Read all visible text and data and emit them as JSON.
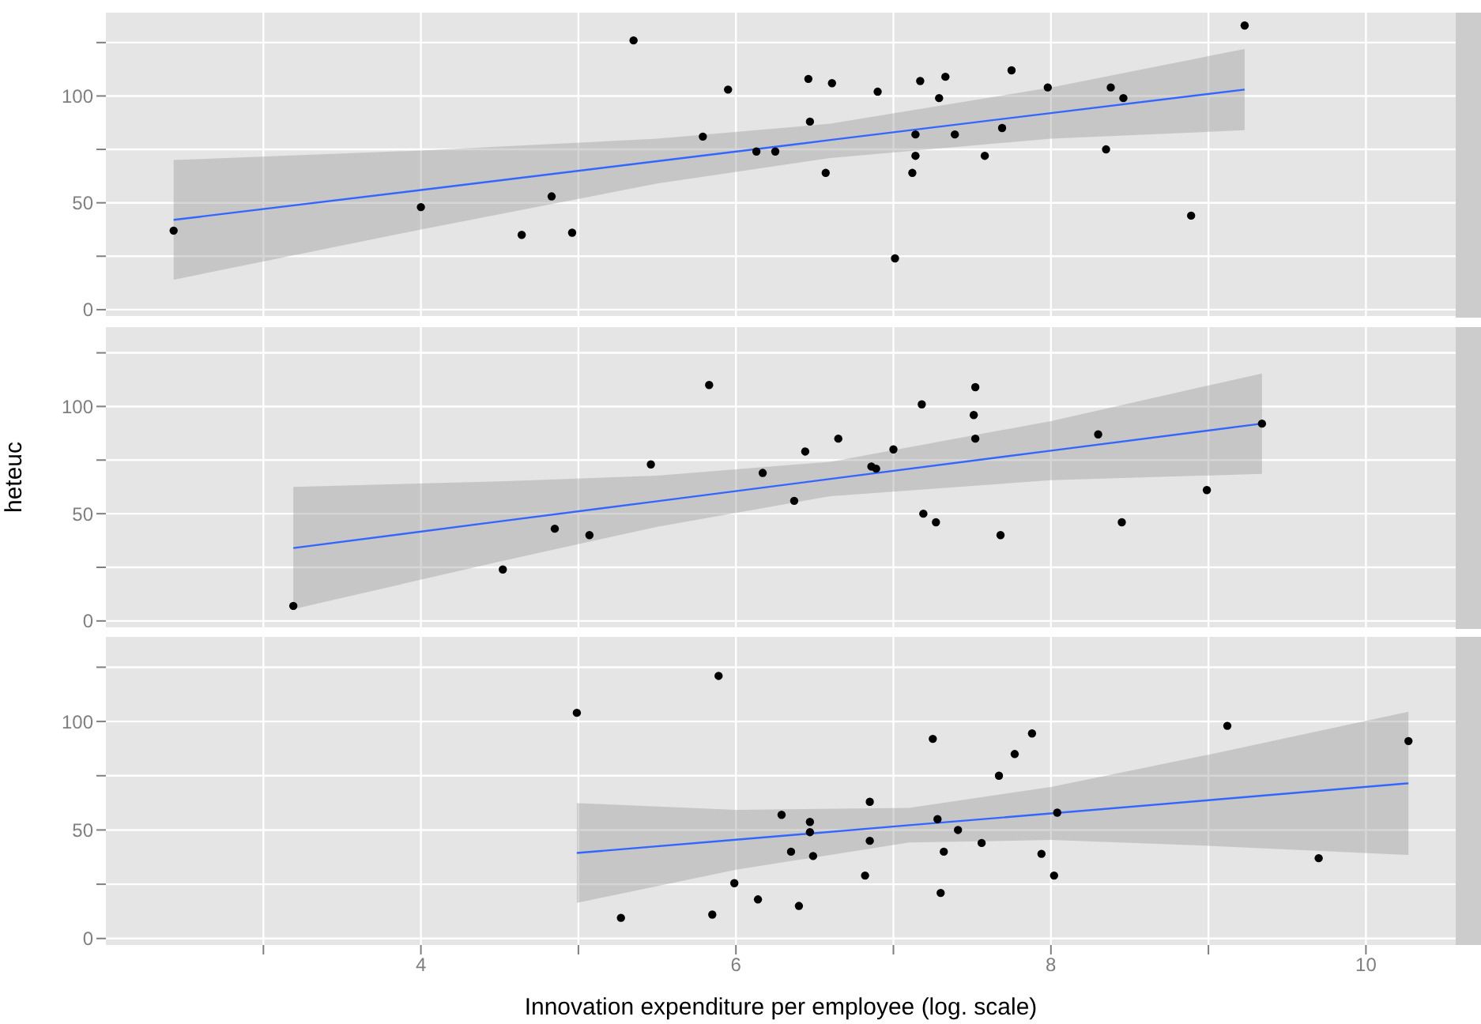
{
  "chart_data": [
    {
      "type": "scatter",
      "xlim": [
        2.0,
        10.57
      ],
      "xticks": [
        {
          "value": 3,
          "label": null
        },
        4,
        {
          "value": 5,
          "label": null
        },
        6,
        {
          "value": 7,
          "label": null
        },
        8,
        {
          "value": 9,
          "label": null
        },
        10
      ],
      "ylim": [
        -3,
        139
      ],
      "yticks": [
        0,
        {
          "value": 25,
          "label": null
        },
        50,
        {
          "value": 75,
          "label": null
        },
        100,
        {
          "value": 125,
          "label": null
        }
      ],
      "tick_labels": "y",
      "grid": true,
      "series": [
        {
          "marker": "circle",
          "color": "#000000",
          "x": [
            2.43,
            4.0,
            4.64,
            4.83,
            4.96,
            5.35,
            5.79,
            5.95,
            6.13,
            6.25,
            6.46,
            6.47,
            6.57,
            6.61,
            6.9,
            7.01,
            7.12,
            7.14,
            7.14,
            7.17,
            7.29,
            7.33,
            7.39,
            7.58,
            7.69,
            7.75,
            7.98,
            8.35,
            8.38,
            8.46,
            8.89,
            9.23
          ],
          "values": [
            37,
            48,
            35,
            53,
            36,
            126,
            81,
            103,
            74,
            74,
            108,
            88,
            64,
            106,
            102,
            24,
            64,
            72,
            82,
            107,
            99,
            109,
            82,
            72,
            85,
            112,
            104,
            75,
            104,
            99,
            44,
            133
          ]
        },
        {
          "type": "line",
          "color": "#3366ff",
          "x": [
            2.43,
            4.0,
            5.5,
            6.6,
            8.0,
            9.23
          ],
          "values": [
            42,
            56,
            69.5,
            79.4,
            92,
            103
          ],
          "lower": [
            14,
            37.5,
            59,
            71,
            80,
            84
          ],
          "upper": [
            70,
            74.5,
            80,
            87,
            104,
            122
          ]
        }
      ]
    },
    {
      "type": "scatter",
      "ylabel": "heteuc",
      "xlim": [
        2.0,
        10.57
      ],
      "xticks": [
        {
          "value": 3,
          "label": null
        },
        4,
        {
          "value": 5,
          "label": null
        },
        6,
        {
          "value": 7,
          "label": null
        },
        8,
        {
          "value": 9,
          "label": null
        },
        10
      ],
      "ylim": [
        -3,
        137
      ],
      "yticks": [
        0,
        {
          "value": 25,
          "label": null
        },
        50,
        {
          "value": 75,
          "label": null
        },
        100,
        {
          "value": 125,
          "label": null
        }
      ],
      "tick_labels": "y",
      "grid": true,
      "series": [
        {
          "marker": "circle",
          "color": "#000000",
          "x": [
            3.19,
            4.52,
            4.85,
            5.07,
            5.46,
            5.83,
            6.17,
            6.37,
            6.44,
            6.65,
            6.86,
            6.89,
            7.0,
            7.18,
            7.19,
            7.27,
            7.51,
            7.52,
            7.52,
            7.68,
            8.3,
            8.45,
            8.99,
            9.34
          ],
          "values": [
            7,
            24,
            43,
            40,
            73,
            110,
            69,
            56,
            79,
            85,
            72,
            71,
            80,
            101,
            50,
            46,
            96,
            109,
            85,
            40,
            87,
            46,
            61,
            92
          ]
        },
        {
          "type": "line",
          "color": "#3366ff",
          "x": [
            3.19,
            4.5,
            5.5,
            6.6,
            8.0,
            9.34
          ],
          "values": [
            34,
            46.4,
            55.8,
            66.2,
            79.4,
            92
          ],
          "lower": [
            5.5,
            27.7,
            43.9,
            58.2,
            65.6,
            68.6
          ],
          "upper": [
            62.5,
            65.1,
            67.7,
            74.2,
            93.2,
            115.4
          ]
        }
      ]
    },
    {
      "type": "scatter",
      "xlabel": "Innovation expenditure per employee (log. scale)",
      "xlim": [
        2.0,
        10.57
      ],
      "xticks": [
        {
          "value": 3,
          "label": null
        },
        4,
        {
          "value": 5,
          "label": null
        },
        6,
        {
          "value": 7,
          "label": null
        },
        8,
        {
          "value": 9,
          "label": null
        },
        10
      ],
      "ylim": [
        -3,
        139
      ],
      "yticks": [
        0,
        {
          "value": 25,
          "label": null
        },
        50,
        {
          "value": 75,
          "label": null
        },
        100,
        {
          "value": 125,
          "label": null
        }
      ],
      "grid": true,
      "series": [
        {
          "marker": "circle",
          "color": "#000000",
          "x": [
            4.99,
            5.27,
            5.89,
            5.85,
            5.99,
            6.14,
            6.29,
            6.35,
            6.4,
            6.47,
            6.47,
            6.49,
            6.82,
            6.85,
            6.85,
            7.25,
            7.28,
            7.3,
            7.32,
            7.41,
            7.56,
            7.67,
            7.77,
            7.88,
            7.94,
            8.02,
            8.04,
            9.12,
            9.7,
            10.27
          ],
          "values": [
            104,
            9.5,
            121,
            11,
            25.5,
            18,
            57,
            40,
            15,
            53.7,
            49,
            38,
            29,
            63,
            45,
            92,
            55,
            21,
            40,
            50,
            44,
            75,
            85,
            94.5,
            39,
            29,
            58,
            98,
            37,
            91
          ]
        },
        {
          "type": "line",
          "color": "#3366ff",
          "x": [
            4.99,
            6.0,
            7.1,
            8.0,
            9.0,
            10.27
          ],
          "values": [
            39.4,
            45.5,
            52.2,
            57.6,
            63.7,
            71.5
          ],
          "lower": [
            16.4,
            31.7,
            44.2,
            45.4,
            42.7,
            38.5
          ],
          "upper": [
            62.4,
            59.3,
            60.2,
            69.8,
            84.7,
            104.5
          ]
        }
      ]
    }
  ]
}
